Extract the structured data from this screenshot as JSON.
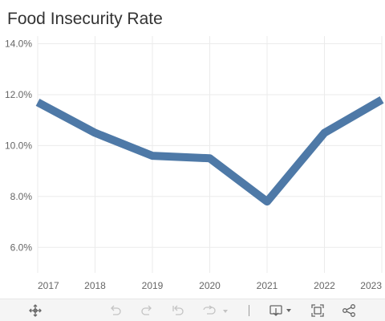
{
  "title": "Food Insecurity Rate",
  "colors": {
    "line": "#4e79a7",
    "grid": "#ebebeb",
    "tick": "#666666"
  },
  "chart_data": {
    "type": "line",
    "title": "Food Insecurity Rate",
    "xlabel": "",
    "ylabel": "",
    "x": [
      "2017",
      "2018",
      "2019",
      "2020",
      "2021",
      "2022",
      "2023"
    ],
    "series": [
      {
        "values": [
          11.7,
          10.5,
          9.6,
          9.5,
          7.8,
          10.5,
          11.8
        ]
      }
    ],
    "yticks": [
      {
        "value": 6,
        "label": "6.0%"
      },
      {
        "value": 8,
        "label": "8.0%"
      },
      {
        "value": 10,
        "label": "10.0%"
      },
      {
        "value": 12,
        "label": "12.0%"
      },
      {
        "value": 14,
        "label": "14.0%"
      }
    ],
    "ylim": [
      5,
      14.3
    ],
    "grid": true,
    "legend": "none"
  },
  "toolbar": {
    "items": [
      {
        "name": "pan-icon",
        "interactable": true
      },
      {
        "name": "undo-icon",
        "interactable": false
      },
      {
        "name": "redo-icon",
        "interactable": false
      },
      {
        "name": "revert-icon",
        "interactable": false
      },
      {
        "name": "refresh-icon",
        "interactable": false
      },
      {
        "name": "download-icon",
        "interactable": true
      },
      {
        "name": "fullscreen-icon",
        "interactable": true
      },
      {
        "name": "share-icon",
        "interactable": true
      }
    ]
  }
}
